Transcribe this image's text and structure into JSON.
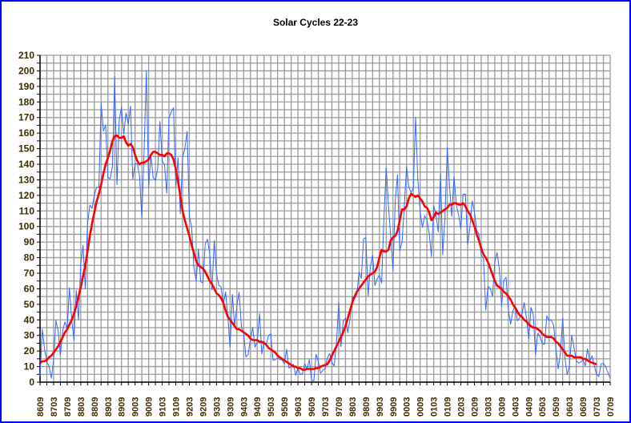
{
  "chart_data": {
    "type": "line",
    "title": "Solar Cycles 22-23",
    "xlabel": "",
    "ylabel": "",
    "ylim": [
      0,
      210
    ],
    "y_ticks": [
      0,
      10,
      20,
      30,
      40,
      50,
      60,
      70,
      80,
      90,
      100,
      110,
      120,
      130,
      140,
      150,
      160,
      170,
      180,
      190,
      200,
      210
    ],
    "x_start": "8609",
    "x_end": "0709",
    "x_ticks": [
      "8609",
      "8703",
      "8709",
      "8803",
      "8809",
      "8903",
      "8909",
      "9003",
      "9009",
      "9103",
      "9109",
      "9203",
      "9209",
      "9303",
      "9309",
      "9403",
      "9409",
      "9503",
      "9509",
      "9603",
      "9609",
      "9703",
      "9709",
      "9803",
      "9809",
      "9903",
      "9909",
      "0003",
      "0009",
      "0103",
      "0109",
      "0203",
      "0209",
      "0303",
      "0309",
      "0403",
      "0409",
      "0503",
      "0509",
      "0603",
      "0609",
      "0703",
      "0709"
    ],
    "grid": true,
    "legend": "none",
    "series": [
      {
        "color": "#3366ff",
        "values": [
          4,
          34,
          21,
          13,
          10.4,
          2.4,
          14.7,
          39.6,
          33.0,
          17.4,
          33.0,
          38.7,
          33.9,
          60.6,
          39.9,
          27.1,
          59.0,
          40.0,
          76.2,
          88.0,
          60.1,
          101.8,
          113.8,
          111.6,
          120.1,
          125.1,
          125.1,
          179.2,
          161.3,
          165.0,
          131.4,
          130.6,
          138.5,
          196.2,
          126.9,
          168.9,
          176.7,
          159.4,
          173.0,
          165.5,
          177.3,
          130.5,
          140.3,
          140.3,
          132.2,
          105.4,
          149.4,
          200.3,
          125.2,
          145.5,
          131.4,
          129.7,
          136.9,
          167.5,
          141.9,
          140.0,
          121.3,
          169.7,
          173.7,
          176.3,
          125.3,
          144.1,
          108.2,
          144.4,
          150.0,
          161.1,
          106.7,
          99.8,
          73.8,
          65.2,
          85.7,
          64.5,
          63.9,
          88.7,
          91.8,
          82.6,
          59.3,
          91.0,
          69.8,
          62.2,
          61.3,
          49.8,
          57.9,
          42.2,
          22.4,
          56.4,
          35.6,
          48.9,
          57.8,
          35.5,
          31.7,
          16.1,
          17.8,
          28.0,
          35.1,
          22.5,
          25.7,
          44.0,
          18.0,
          26.2,
          24.2,
          29.9,
          31.1,
          14.0,
          14.5,
          15.6,
          14.5,
          14.3,
          11.8,
          21.1,
          9.0,
          10.0,
          11.5,
          4.4,
          9.2,
          4.8,
          5.5,
          11.8,
          8.2,
          14.4,
          1.6,
          0.9,
          17.9,
          13.3,
          5.7,
          7.6,
          8.7,
          15.5,
          18.5,
          12.7,
          10.4,
          24.4,
          51.3,
          22.8,
          39.0,
          41.2,
          31.9,
          40.3,
          54.8,
          53.4,
          56.3,
          70.7,
          66.6,
          92.2,
          92.9,
          55.5,
          74.0,
          81.9,
          62.0,
          66.3,
          68.8,
          63.7,
          106.4,
          137.7,
          113.5,
          93.7,
          71.5,
          116.7,
          133.2,
          84.6,
          90.1,
          112.9,
          138.5,
          125.5,
          121.6,
          124.9,
          170.1,
          130.5,
          109.7,
          99.4,
          106.8,
          104.4,
          95.6,
          80.6,
          113.5,
          107.7,
          96.6,
          134.0,
          81.8,
          106.4,
          150.7,
          125.5,
          106.5,
          132.2,
          114.1,
          107.4,
          98.4,
          120.7,
          120.8,
          88.3,
          99.6,
          116.4,
          109.6,
          97.5,
          95.0,
          81.6,
          79.5,
          46.2,
          61.5,
          60.0,
          55.2,
          77.4,
          83.3,
          72.7,
          48.7,
          65.5,
          67.3,
          46.5,
          37.3,
          45.8,
          49.1,
          39.3,
          41.5,
          43.2,
          51.1,
          40.9,
          27.7,
          48.0,
          43.5,
          17.9,
          31.3,
          29.2,
          24.5,
          24.4,
          42.6,
          39.6,
          39.9,
          36.4,
          22.1,
          8.5,
          18.0,
          41.2,
          15.3,
          4.9,
          10.6,
          30.2,
          22.3,
          13.9,
          12.2,
          12.9,
          14.4,
          10.5,
          21.4,
          13.6,
          16.9,
          10.6,
          4.8,
          3.7,
          11.7,
          12.0,
          10.0,
          6.2,
          2.4
        ]
      },
      {
        "color": "#ff0000",
        "values": [
          12.3,
          13.4,
          13.5,
          14.2,
          16,
          17,
          19,
          21,
          23,
          26,
          29,
          32,
          34,
          37,
          40,
          44,
          49,
          55,
          61,
          68,
          75,
          84,
          94,
          102,
          109,
          116,
          121,
          127,
          134,
          140,
          144,
          149,
          155,
          158,
          158.5,
          157,
          157,
          158,
          154,
          152,
          153,
          151,
          146,
          142,
          140,
          141,
          141,
          142,
          143,
          146,
          148,
          148,
          147,
          146,
          146,
          145,
          147,
          147,
          146,
          143,
          137,
          129,
          120,
          110,
          104,
          99,
          94,
          88,
          83,
          78,
          75,
          74,
          73,
          71,
          68,
          65,
          63,
          60,
          57,
          56,
          54,
          51,
          46,
          42,
          40,
          38,
          36,
          34,
          34,
          33,
          32,
          31,
          30,
          28,
          27,
          27,
          27,
          26,
          26,
          25,
          24,
          22,
          21,
          20,
          19,
          17,
          16,
          15,
          14,
          13,
          12,
          11,
          10,
          10,
          9,
          9,
          8,
          8,
          8.5,
          8.5,
          8.4,
          8.5,
          9,
          9,
          10,
          10.5,
          11,
          11.5,
          14,
          17,
          20,
          23,
          26,
          29,
          32,
          36,
          41,
          46,
          51,
          55,
          58,
          60,
          62,
          64,
          66,
          68,
          69,
          70,
          71,
          74,
          80,
          85,
          84,
          84,
          85,
          91,
          93,
          94,
          97,
          104,
          111,
          111,
          113,
          118,
          121,
          120,
          119,
          120,
          118,
          116,
          113,
          112,
          109,
          104,
          106,
          109,
          108,
          109,
          110,
          111,
          112,
          114,
          114,
          115,
          115,
          114,
          114,
          115,
          113,
          110,
          108,
          104,
          100,
          95,
          91,
          86,
          82,
          80,
          77,
          73,
          69,
          65,
          62,
          61,
          60,
          58,
          57,
          55,
          53,
          50,
          48,
          45,
          43,
          42,
          40,
          39,
          37,
          36,
          35,
          35,
          34,
          33,
          31,
          30,
          29,
          29,
          29,
          28,
          26,
          25,
          23,
          21,
          19,
          17,
          17,
          17,
          16,
          16,
          16,
          16,
          15,
          15,
          14,
          13,
          12.5,
          12,
          11.5
        ]
      }
    ]
  }
}
